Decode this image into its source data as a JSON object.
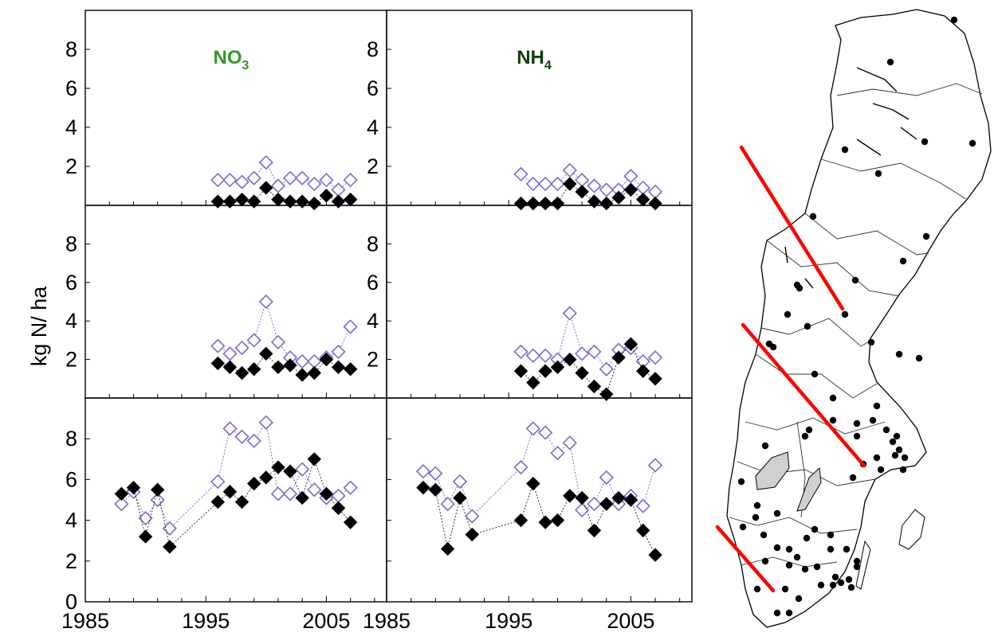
{
  "y_axis_label": "kg N/ ha",
  "colors": {
    "no3_title": "#2f9a24",
    "nh4_title": "#0f3d0f",
    "open_marker": "#6f6fd8",
    "filled_marker": "#000000",
    "divider_line": "#ff0000",
    "lakes": "#d0d0d0"
  },
  "chart_data": [
    {
      "type": "line",
      "panel": "row1-left",
      "title": "NO",
      "title_sub": "3",
      "xlim": [
        1985,
        2010
      ],
      "ylim": [
        0,
        10
      ],
      "x_ticks": [
        "1985",
        "1995",
        "2005"
      ],
      "y_ticks": [
        "2",
        "4",
        "6",
        "8"
      ],
      "series": [
        {
          "marker": "open-diamond",
          "x": [
            1996,
            1997,
            1998,
            1999,
            2000,
            2001,
            2002,
            2003,
            2004,
            2005,
            2006,
            2007
          ],
          "values": [
            1.3,
            1.3,
            1.2,
            1.4,
            2.2,
            1.0,
            1.4,
            1.4,
            1.1,
            1.3,
            0.8,
            1.3
          ]
        },
        {
          "marker": "filled-diamond",
          "x": [
            1996,
            1997,
            1998,
            1999,
            2000,
            2001,
            2002,
            2003,
            2004,
            2005,
            2006,
            2007
          ],
          "values": [
            0.2,
            0.2,
            0.3,
            0.2,
            0.9,
            0.3,
            0.2,
            0.2,
            0.1,
            0.5,
            0.2,
            0.3
          ]
        }
      ]
    },
    {
      "type": "line",
      "panel": "row1-right",
      "title": "NH",
      "title_sub": "4",
      "xlim": [
        1985,
        2010
      ],
      "ylim": [
        0,
        10
      ],
      "x_ticks": [
        "1985",
        "1995",
        "2005"
      ],
      "y_ticks": [
        "2",
        "4",
        "6",
        "8"
      ],
      "series": [
        {
          "marker": "open-diamond",
          "x": [
            1996,
            1997,
            1998,
            1999,
            2000,
            2001,
            2002,
            2003,
            2004,
            2005,
            2006,
            2007
          ],
          "values": [
            1.6,
            1.1,
            1.1,
            1.1,
            1.8,
            1.3,
            1.0,
            0.8,
            0.8,
            1.5,
            0.9,
            0.7
          ]
        },
        {
          "marker": "filled-diamond",
          "x": [
            1996,
            1997,
            1998,
            1999,
            2000,
            2001,
            2002,
            2003,
            2004,
            2005,
            2006,
            2007
          ],
          "values": [
            0.1,
            0.1,
            0.1,
            0.1,
            1.1,
            0.7,
            0.2,
            0.1,
            0.4,
            0.8,
            0.3,
            0.1
          ]
        }
      ]
    },
    {
      "type": "line",
      "panel": "row2-left",
      "xlim": [
        1985,
        2010
      ],
      "ylim": [
        0,
        10
      ],
      "x_ticks": [
        "1985",
        "1995",
        "2005"
      ],
      "y_ticks": [
        "2",
        "4",
        "6",
        "8"
      ],
      "series": [
        {
          "marker": "open-diamond",
          "x": [
            1996,
            1997,
            1998,
            1999,
            2000,
            2001,
            2002,
            2003,
            2004,
            2005,
            2006,
            2007
          ],
          "values": [
            2.7,
            2.3,
            2.6,
            3.0,
            5.0,
            2.9,
            2.1,
            1.9,
            1.9,
            2.1,
            2.4,
            3.7
          ]
        },
        {
          "marker": "filled-diamond",
          "x": [
            1996,
            1997,
            1998,
            1999,
            2000,
            2001,
            2002,
            2003,
            2004,
            2005,
            2006,
            2007
          ],
          "values": [
            1.8,
            1.6,
            1.3,
            1.5,
            2.3,
            1.6,
            1.7,
            1.2,
            1.3,
            2.0,
            1.6,
            1.5
          ]
        }
      ]
    },
    {
      "type": "line",
      "panel": "row2-right",
      "xlim": [
        1985,
        2010
      ],
      "ylim": [
        0,
        10
      ],
      "x_ticks": [
        "1985",
        "1995",
        "2005"
      ],
      "y_ticks": [
        "2",
        "4",
        "6",
        "8"
      ],
      "series": [
        {
          "marker": "open-diamond",
          "x": [
            1996,
            1997,
            1998,
            1999,
            2000,
            2001,
            2002,
            2003,
            2004,
            2005,
            2006,
            2007
          ],
          "values": [
            2.4,
            2.2,
            2.2,
            2.0,
            4.4,
            2.3,
            2.4,
            1.5,
            2.5,
            2.6,
            1.9,
            2.1
          ]
        },
        {
          "marker": "filled-diamond",
          "x": [
            1996,
            1997,
            1998,
            1999,
            2000,
            2001,
            2002,
            2003,
            2004,
            2005,
            2006,
            2007
          ],
          "values": [
            1.4,
            0.8,
            1.4,
            1.6,
            2.0,
            1.3,
            0.6,
            0.2,
            2.1,
            2.8,
            1.4,
            1.0
          ]
        }
      ]
    },
    {
      "type": "line",
      "panel": "row3-left",
      "xlim": [
        1985,
        2010
      ],
      "ylim": [
        0,
        10
      ],
      "x_ticks": [
        "1985",
        "1995",
        "2005"
      ],
      "y_ticks": [
        "0",
        "2",
        "4",
        "6",
        "8"
      ],
      "series": [
        {
          "marker": "open-diamond",
          "x": [
            1988,
            1989,
            1990,
            1991,
            1992,
            1996,
            1997,
            1998,
            1999,
            2000,
            2001,
            2002,
            2003,
            2004,
            2005,
            2006,
            2007
          ],
          "values": [
            4.8,
            5.4,
            4.1,
            5.0,
            3.6,
            5.9,
            8.5,
            8.1,
            7.9,
            8.8,
            5.3,
            5.3,
            6.5,
            5.5,
            5.1,
            5.2,
            5.6
          ]
        },
        {
          "marker": "filled-diamond",
          "x": [
            1988,
            1989,
            1990,
            1991,
            1992,
            1996,
            1997,
            1998,
            1999,
            2000,
            2001,
            2002,
            2003,
            2004,
            2005,
            2006,
            2007
          ],
          "values": [
            5.3,
            5.6,
            3.2,
            5.5,
            2.7,
            4.9,
            5.4,
            4.9,
            5.8,
            6.1,
            6.6,
            6.4,
            5.1,
            7.0,
            5.3,
            4.6,
            3.9
          ]
        }
      ]
    },
    {
      "type": "line",
      "panel": "row3-right",
      "xlim": [
        1985,
        2010
      ],
      "ylim": [
        0,
        10
      ],
      "x_ticks": [
        "1985",
        "1995",
        "2005"
      ],
      "y_ticks": [],
      "series": [
        {
          "marker": "open-diamond",
          "x": [
            1988,
            1989,
            1990,
            1991,
            1992,
            1996,
            1997,
            1998,
            1999,
            2000,
            2001,
            2002,
            2003,
            2004,
            2005,
            2006,
            2007
          ],
          "values": [
            6.4,
            6.3,
            4.8,
            5.9,
            4.2,
            6.6,
            8.5,
            8.3,
            7.3,
            7.8,
            4.5,
            4.8,
            6.1,
            4.8,
            5.2,
            4.7,
            6.7
          ]
        },
        {
          "marker": "filled-diamond",
          "x": [
            1988,
            1989,
            1990,
            1991,
            1992,
            1996,
            1997,
            1998,
            1999,
            2000,
            2001,
            2002,
            2003,
            2004,
            2005,
            2006,
            2007
          ],
          "values": [
            5.6,
            5.5,
            2.6,
            5.1,
            3.3,
            4.0,
            5.8,
            3.9,
            4.0,
            5.2,
            5.1,
            3.5,
            4.8,
            5.1,
            5.0,
            3.5,
            2.3
          ]
        }
      ]
    }
  ]
}
